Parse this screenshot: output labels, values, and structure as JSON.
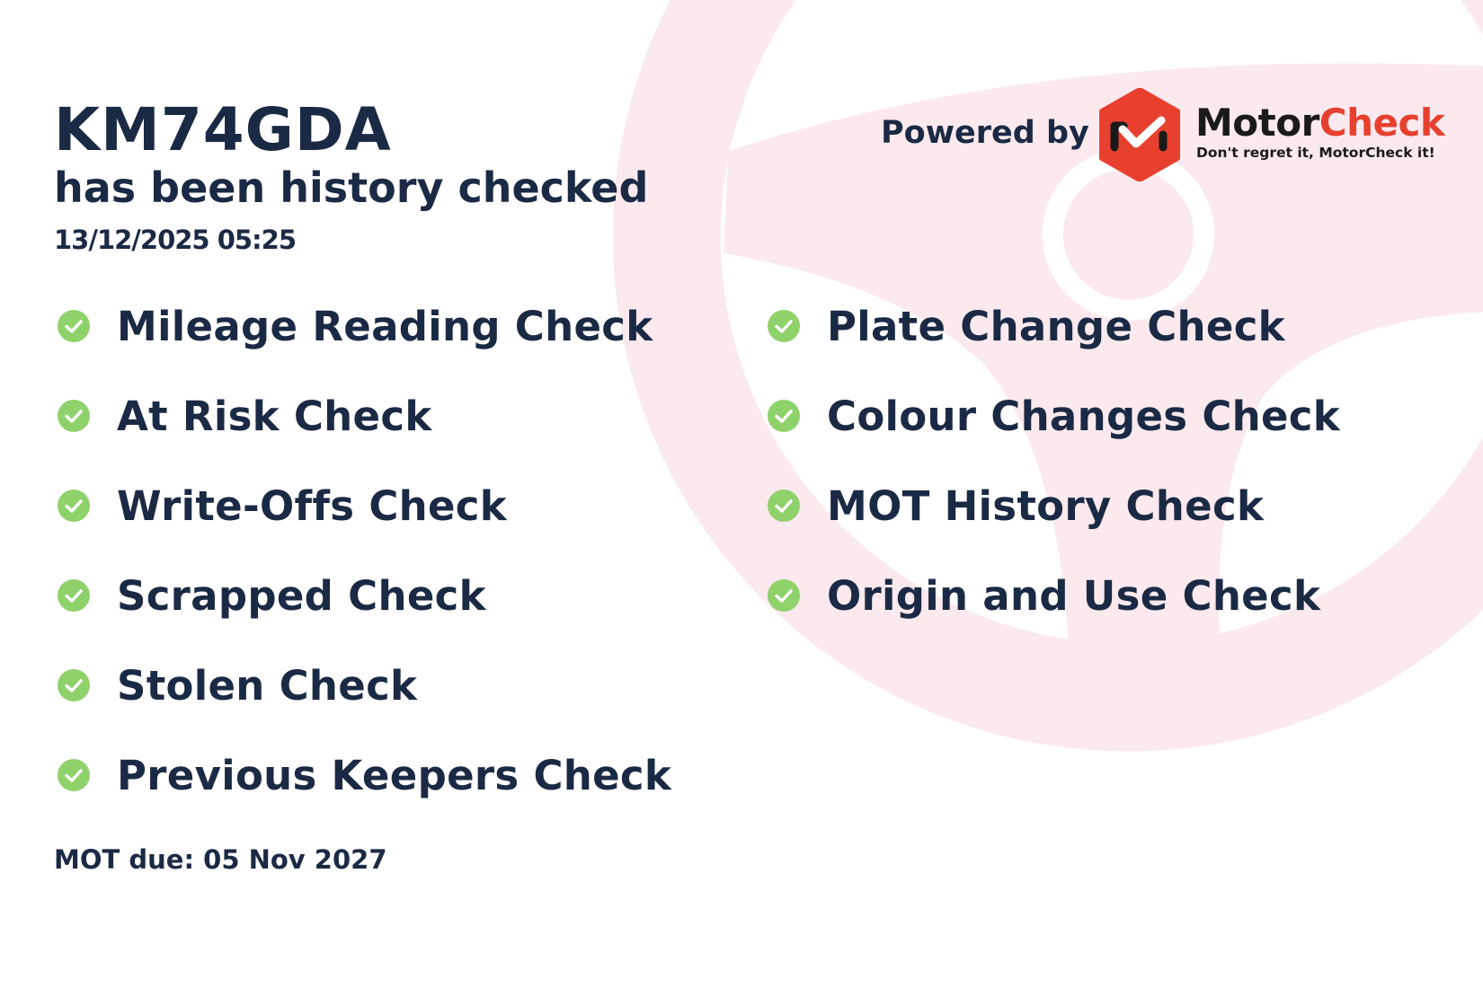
{
  "header": {
    "plate": "KM74GDA",
    "subtitle": "has been history checked",
    "datetime": "13/12/2025 05:25"
  },
  "branding": {
    "powered_by": "Powered by",
    "brand_part1": "Motor",
    "brand_part2": "Check",
    "tagline": "Don't regret it, MotorCheck it!",
    "brand_color": "#e8402f"
  },
  "checks": {
    "left": [
      {
        "label": "Mileage Reading Check",
        "icon": "check-circle-icon"
      },
      {
        "label": "At Risk Check",
        "icon": "check-circle-icon"
      },
      {
        "label": "Write-Offs Check",
        "icon": "check-circle-icon"
      },
      {
        "label": "Scrapped Check",
        "icon": "check-circle-icon"
      },
      {
        "label": "Stolen Check",
        "icon": "check-circle-icon"
      },
      {
        "label": "Previous Keepers Check",
        "icon": "check-circle-icon"
      }
    ],
    "right": [
      {
        "label": "Plate Change Check",
        "icon": "check-circle-icon"
      },
      {
        "label": "Colour Changes Check",
        "icon": "check-circle-icon"
      },
      {
        "label": "MOT History Check",
        "icon": "check-circle-icon"
      },
      {
        "label": "Origin and Use Check",
        "icon": "check-circle-icon"
      }
    ],
    "check_color": "#8fd16a"
  },
  "footer": {
    "mot_due": "MOT due: 05 Nov 2027"
  }
}
